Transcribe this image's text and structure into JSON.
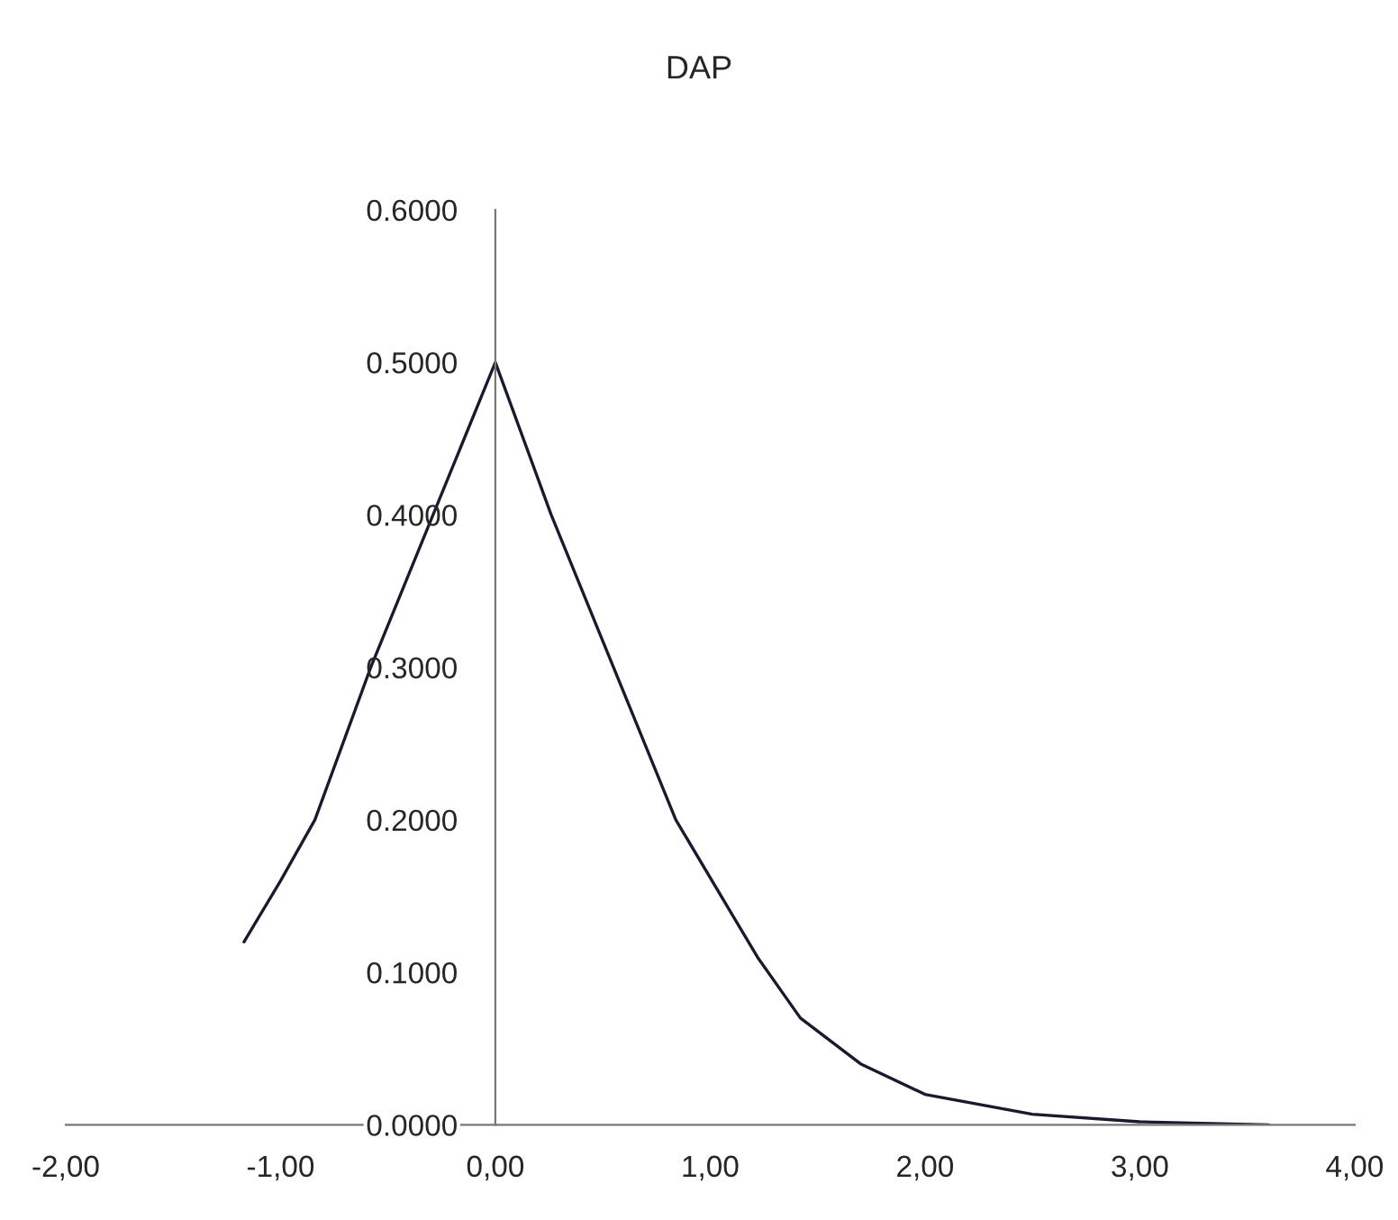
{
  "chart_data": {
    "type": "line",
    "title": "DAP",
    "x": [
      -1.17,
      -1.0,
      -0.84,
      -0.58,
      -0.29,
      0.0,
      0.26,
      0.55,
      0.84,
      1.22,
      1.42,
      1.7,
      2.0,
      2.5,
      3.0,
      3.6
    ],
    "series": [
      {
        "color": "#1a1a2e",
        "values": [
          0.12,
          0.16,
          0.2,
          0.3,
          0.4,
          0.5,
          0.4,
          0.3,
          0.2,
          0.11,
          0.07,
          0.04,
          0.02,
          0.007,
          0.002,
          0.0
        ]
      }
    ],
    "xlim": [
      -2,
      4
    ],
    "xticks": [
      {
        "value": -2,
        "label": "-2,00"
      },
      {
        "value": -1,
        "label": "-1,00"
      },
      {
        "value": 0,
        "label": "0,00"
      },
      {
        "value": 1,
        "label": "1,00"
      },
      {
        "value": 2,
        "label": "2,00"
      },
      {
        "value": 3,
        "label": "3,00"
      },
      {
        "value": 4,
        "label": "4,00"
      }
    ],
    "ylim": [
      0,
      0.6
    ],
    "yticks": [
      {
        "value": 0,
        "label": "0.0000"
      },
      {
        "value": 0.1,
        "label": "0.1000"
      },
      {
        "value": 0.2,
        "label": "0.2000"
      },
      {
        "value": 0.3,
        "label": "0.3000"
      },
      {
        "value": 0.4,
        "label": "0.4000"
      },
      {
        "value": 0.5,
        "label": "0.5000"
      },
      {
        "value": 0.6,
        "label": "0.6000"
      }
    ],
    "grid": false,
    "legend": false,
    "marker": "none",
    "line_style": "solid"
  }
}
